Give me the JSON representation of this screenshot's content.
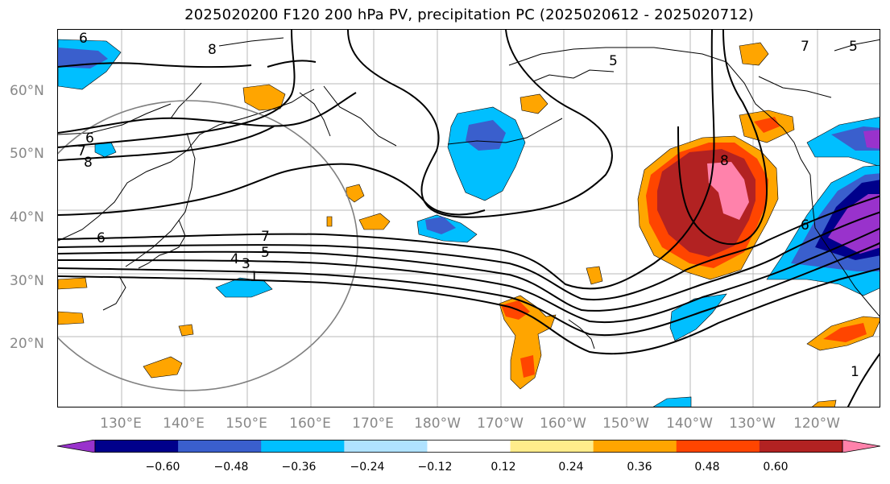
{
  "title": "2025020200 F120 200 hPa PV, precipitation PC (2025020612 - 2025020712)",
  "lat_labels": [
    "60°N",
    "50°N",
    "40°N",
    "30°N",
    "20°N"
  ],
  "lon_labels": [
    "130°E",
    "140°E",
    "150°E",
    "160°E",
    "170°E",
    "180°W",
    "170°W",
    "160°W",
    "150°W",
    "140°W",
    "130°W",
    "120°W"
  ],
  "contour_labels": [
    "6",
    "8",
    "5",
    "6",
    "7",
    "8",
    "6",
    "7",
    "5",
    "4",
    "3",
    "1",
    "8",
    "6",
    "7",
    "1",
    "5"
  ],
  "colorbar": {
    "ticks": [
      "−0.60",
      "−0.48",
      "−0.36",
      "−0.24",
      "−0.12",
      "0.12",
      "0.24",
      "0.36",
      "0.48",
      "0.60"
    ],
    "colors": [
      "#9932CC",
      "#00008B",
      "#3A5FCD",
      "#00BFFF",
      "#B0E2FF",
      "#FFFFFF",
      "#FFEC8B",
      "#FFA500",
      "#FF4500",
      "#B22222",
      "#FF82AB"
    ]
  }
}
